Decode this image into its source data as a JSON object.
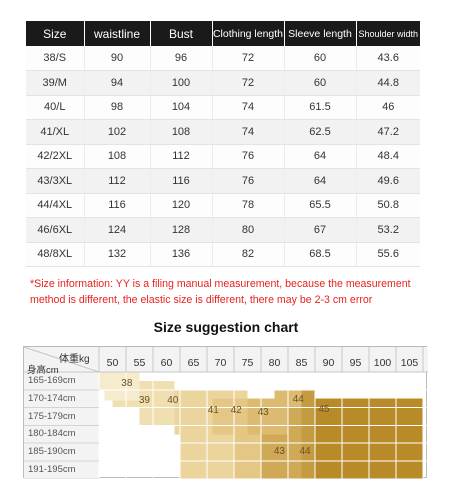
{
  "size_table": {
    "headers": [
      "Size",
      "waistline",
      "Bust",
      "Clothing length",
      "Sleeve length",
      "Shoulder width"
    ],
    "rows": [
      [
        "38/S",
        "90",
        "96",
        "72",
        "60",
        "43.6"
      ],
      [
        "39/M",
        "94",
        "100",
        "72",
        "60",
        "44.8"
      ],
      [
        "40/L",
        "98",
        "104",
        "74",
        "61.5",
        "46"
      ],
      [
        "41/XL",
        "102",
        "108",
        "74",
        "62.5",
        "47.2"
      ],
      [
        "42/2XL",
        "108",
        "112",
        "76",
        "64",
        "48.4"
      ],
      [
        "43/3XL",
        "112",
        "116",
        "76",
        "64",
        "49.6"
      ],
      [
        "44/4XL",
        "116",
        "120",
        "78",
        "65.5",
        "50.8"
      ],
      [
        "46/6XL",
        "124",
        "128",
        "80",
        "67",
        "53.2"
      ],
      [
        "48/8XL",
        "132",
        "136",
        "82",
        "68.5",
        "55.6"
      ]
    ]
  },
  "note": {
    "line1": "*Size information: YY is a filing manual measurement, because the measurement",
    "line2": "method is different, the elastic size is different, there may be 2-3 cm error"
  },
  "suggestion_chart": {
    "title": "Size suggestion chart",
    "weight_header": "体重kg",
    "height_header": "身高cm",
    "weights": [
      "50",
      "55",
      "60",
      "65",
      "70",
      "75",
      "80",
      "85",
      "90",
      "95",
      "100",
      "105"
    ],
    "heights": [
      "165-169cm",
      "170-174cm",
      "175-179cm",
      "180-184cm",
      "185-190cm",
      "191-195cm"
    ],
    "zones": [
      {
        "size": "38",
        "color": "#f6ebcc"
      },
      {
        "size": "39",
        "color": "#f0dfb0"
      },
      {
        "size": "40",
        "color": "#ecd59c"
      },
      {
        "size": "41",
        "color": "#e4c785"
      },
      {
        "size": "42",
        "color": "#dcbb70"
      },
      {
        "size": "43",
        "color": "#cfa955"
      },
      {
        "size": "44",
        "color": "#c59b41"
      },
      {
        "size": "45",
        "color": "#b88a28"
      }
    ]
  }
}
